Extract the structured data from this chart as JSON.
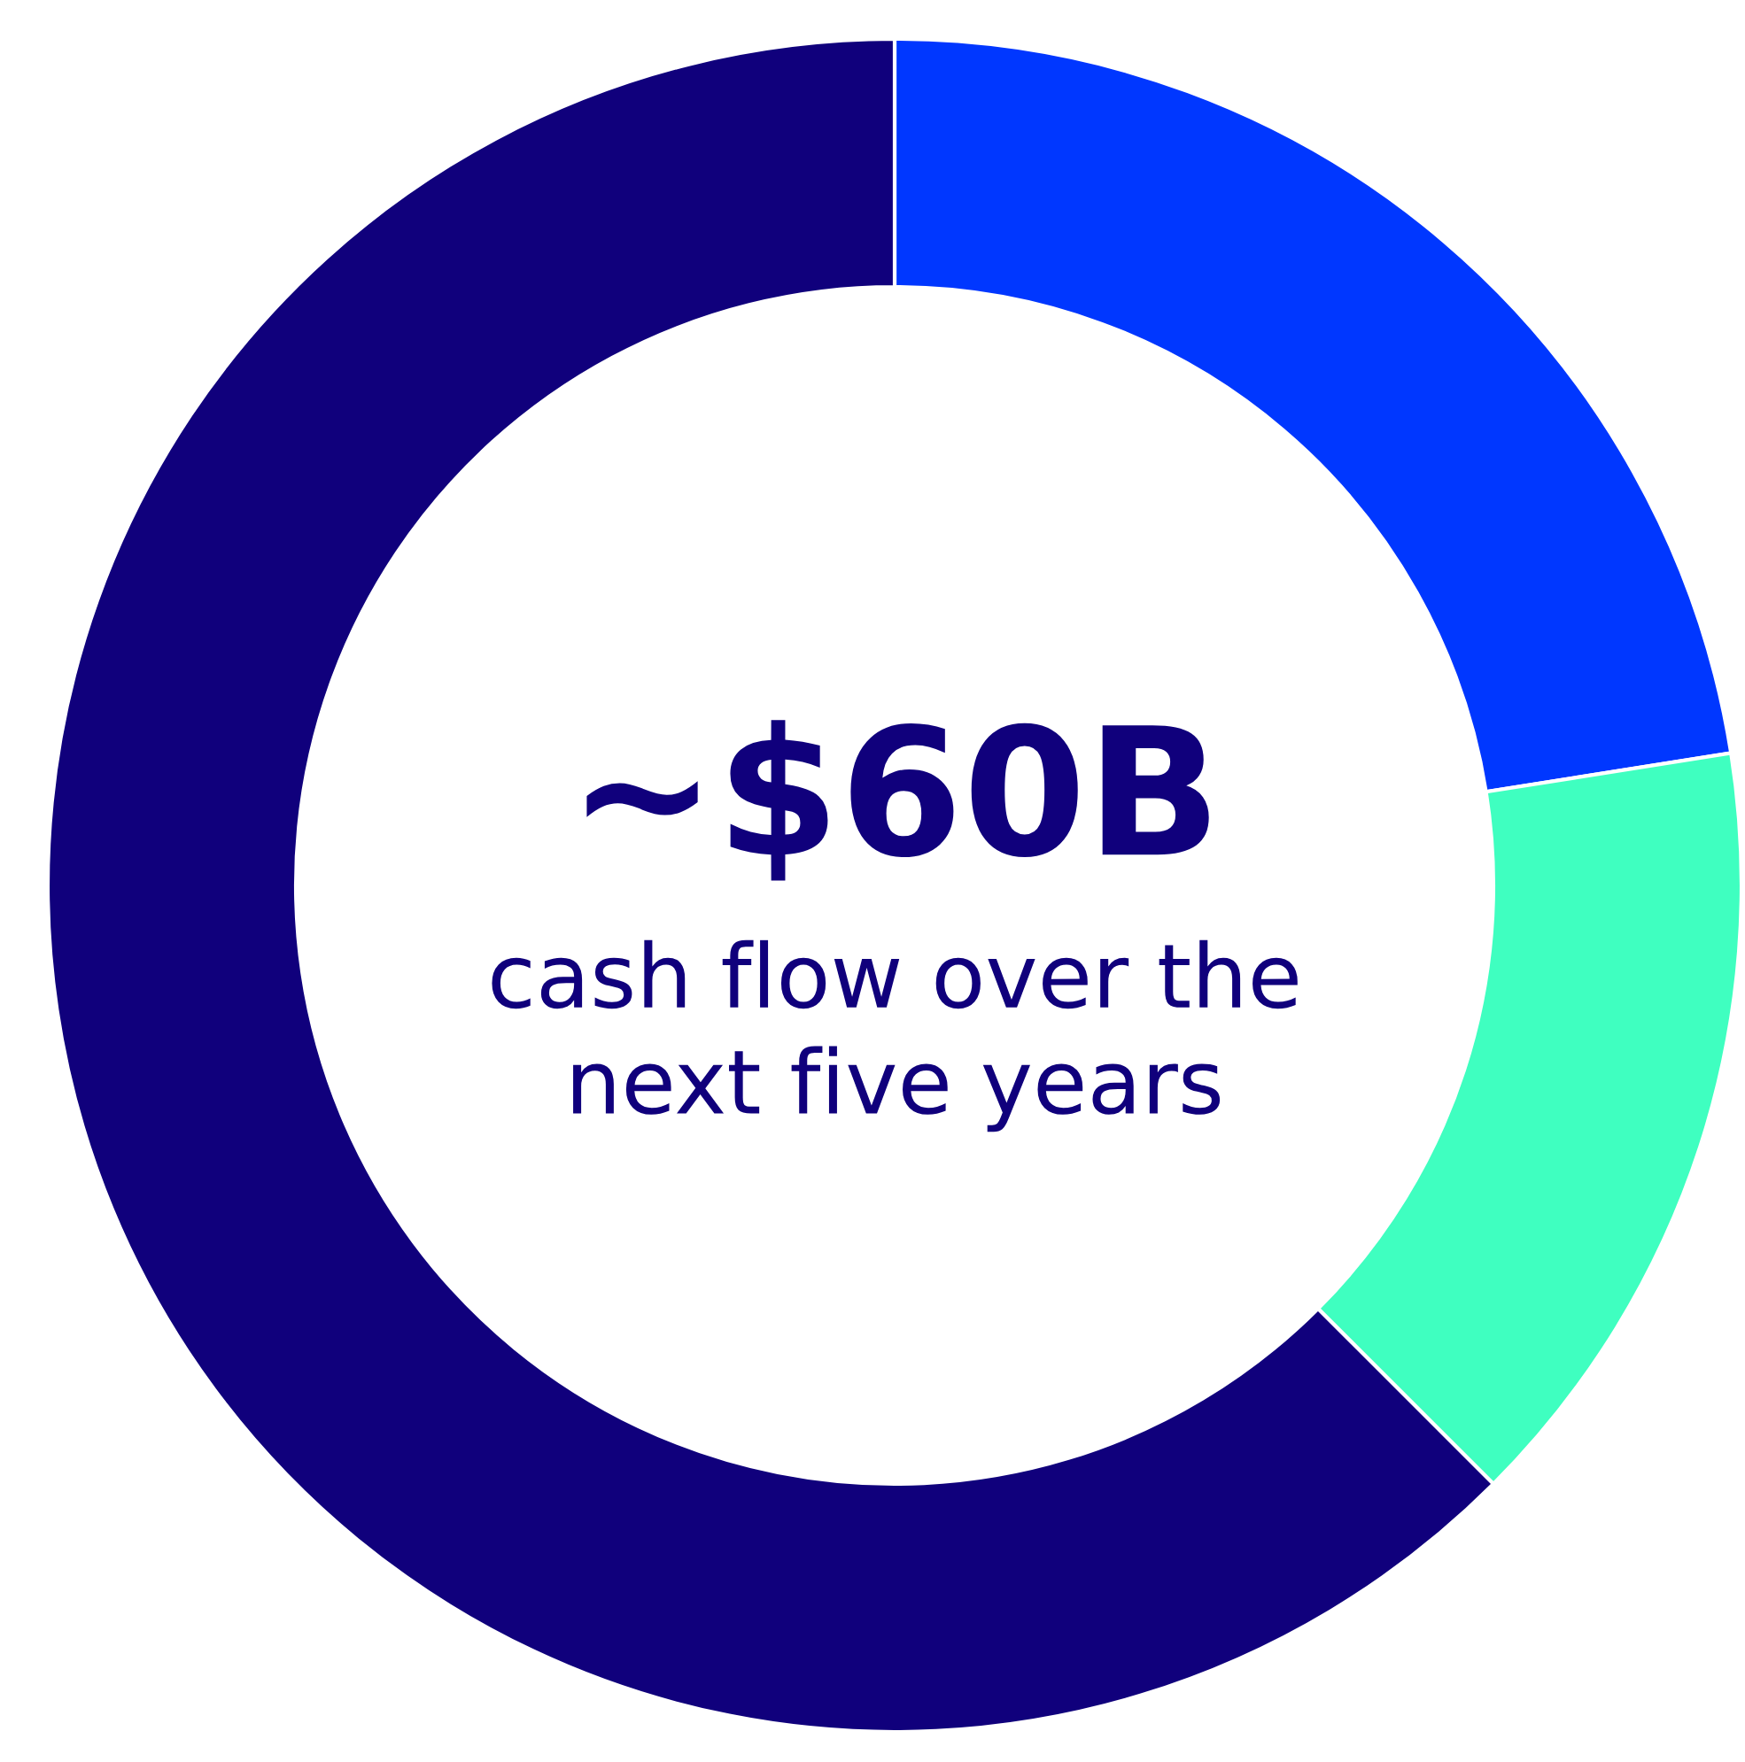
{
  "chart_data": {
    "type": "donut",
    "title": "~$60B",
    "subtitle": "cash flow over the next five years",
    "categories": [
      null,
      null,
      null
    ],
    "values": [
      22.5,
      15,
      62.5
    ],
    "colors": [
      "#0037ff",
      "#3fffc0",
      "#10007c"
    ]
  }
}
